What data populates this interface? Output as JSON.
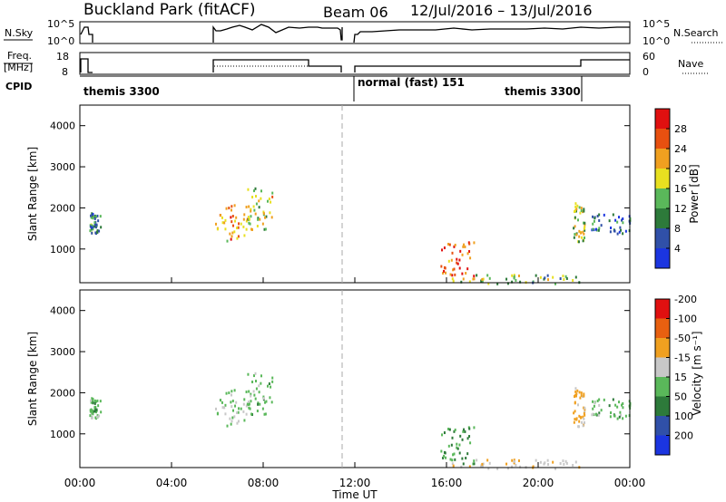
{
  "header": {
    "site": "Buckland Park (fitACF)",
    "beam": "Beam 06",
    "dates": "12/Jul/2016 – 13/Jul/2016"
  },
  "noise_panel": {
    "left_label": "N.Sky",
    "right_label": "N.Search",
    "left_ticks": [
      "10^5",
      "10^0"
    ],
    "right_ticks": [
      "10^5",
      "10^0"
    ]
  },
  "freq_panel": {
    "left_label_1": "Freq.",
    "left_label_2": "[MHz]",
    "left_ticks": [
      "18",
      "8"
    ],
    "right_label": "Nave",
    "right_ticks": [
      "60",
      "0"
    ]
  },
  "cpid_panel": {
    "label": "CPID",
    "modes": [
      "themis 3300",
      "normal (fast) 151",
      "themis 3300"
    ]
  },
  "time_axis": {
    "label": "Time UT",
    "ticks": [
      "00:00",
      "04:00",
      "08:00",
      "12:00",
      "16:00",
      "20:00",
      "00:00"
    ]
  },
  "range_axis": {
    "label": "Slant Range [km]",
    "ticks": [
      "1000",
      "2000",
      "3000",
      "4000"
    ]
  },
  "power_colorbar": {
    "label": "Power [dB]",
    "ticks": [
      "4",
      "8",
      "12",
      "16",
      "20",
      "24",
      "28"
    ],
    "colors": [
      "#1b35e0",
      "#3050a8",
      "#2d7a3a",
      "#5ab85a",
      "#e8e020",
      "#f0a020",
      "#e85010",
      "#e01010"
    ]
  },
  "velocity_colorbar": {
    "label": "Velocity [m s⁻¹]",
    "ticks": [
      "200",
      "100",
      "50",
      "15",
      "-15",
      "-50",
      "-100",
      "-200"
    ],
    "colors": [
      "#1b35e0",
      "#3050a8",
      "#2d7a3a",
      "#5ab85a",
      "#c8c8c8",
      "#f0a020",
      "#e86010",
      "#e01010"
    ]
  },
  "chart_data": {
    "type": "heatmap",
    "x_range_hours": [
      0,
      24
    ],
    "y_range_km": [
      180,
      4500
    ],
    "cpid_segments": [
      {
        "label": "themis 3300",
        "start_h": 0,
        "end_h": 11.6
      },
      {
        "label": "normal (fast) 151",
        "start_h": 12,
        "end_h": 22
      },
      {
        "label": "themis 3300",
        "start_h": 22,
        "end_h": 24
      }
    ],
    "data_gaps": [
      [
        0.9,
        5.9
      ],
      [
        11.6,
        12.0
      ]
    ],
    "echo_regions": [
      {
        "t0": 0.4,
        "t1": 0.9,
        "r0": 1400,
        "r1": 1900,
        "power": 10,
        "velocity": 0
      },
      {
        "t0": 5.9,
        "t1": 7.4,
        "r0": 1200,
        "r1": 2100,
        "power": 22,
        "velocity": -10
      },
      {
        "t0": 7.3,
        "t1": 8.4,
        "r0": 1500,
        "r1": 2500,
        "power": 18,
        "velocity": 0
      },
      {
        "t0": 15.7,
        "t1": 17.2,
        "r0": 300,
        "r1": 1200,
        "power": 26,
        "velocity": 15
      },
      {
        "t0": 16.2,
        "t1": 21.9,
        "r0": 180,
        "r1": 400,
        "power": 14,
        "velocity": -40
      },
      {
        "t0": 21.5,
        "t1": 22.0,
        "r0": 1200,
        "r1": 2200,
        "power": 16,
        "velocity": -60
      },
      {
        "t0": 22.3,
        "t1": 24,
        "r0": 1400,
        "r1": 1900,
        "power": 8,
        "velocity": 0
      }
    ]
  }
}
